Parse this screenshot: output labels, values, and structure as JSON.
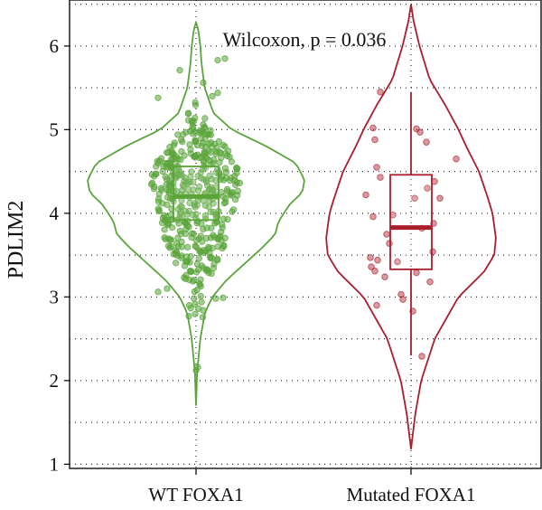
{
  "chart_data": {
    "type": "violin",
    "title": "",
    "xlabel": "",
    "ylabel": "PDLIM2",
    "ylim": [
      0.95,
      6.55
    ],
    "yticks": [
      1,
      2,
      3,
      4,
      5,
      6
    ],
    "categories": [
      "WT FOXA1",
      "Mutated FOXA1"
    ],
    "annotation": "Wilcoxon, p = 0.036",
    "grid": "dotted",
    "legend": "none",
    "series": [
      {
        "category": "WT FOXA1",
        "color": "#5aa43a",
        "box": {
          "q1": 3.92,
          "median": 4.2,
          "q3": 4.56
        },
        "violin": {
          "min": 1.7,
          "max": 6.28,
          "max_halfwidth": 0.23,
          "density_shape": [
            [
              1.7,
              0.0
            ],
            [
              2.1,
              0.01
            ],
            [
              2.5,
              0.04
            ],
            [
              2.8,
              0.08
            ],
            [
              3.0,
              0.15
            ],
            [
              3.2,
              0.28
            ],
            [
              3.4,
              0.45
            ],
            [
              3.6,
              0.62
            ],
            [
              3.75,
              0.73
            ],
            [
              3.9,
              0.76
            ],
            [
              4.1,
              0.86
            ],
            [
              4.25,
              0.98
            ],
            [
              4.4,
              1.0
            ],
            [
              4.6,
              0.92
            ],
            [
              4.8,
              0.65
            ],
            [
              5.0,
              0.33
            ],
            [
              5.2,
              0.16
            ],
            [
              5.5,
              0.08
            ],
            [
              5.8,
              0.05
            ],
            [
              6.0,
              0.04
            ],
            [
              6.2,
              0.02
            ],
            [
              6.28,
              0.0
            ]
          ]
        },
        "outlier_points": [
          2.12,
          2.16,
          2.77,
          2.84,
          5.71,
          5.83,
          5.85,
          5.56,
          5.44,
          5.4,
          5.38,
          5.08,
          3.06,
          3.1,
          2.98,
          2.99
        ]
      },
      {
        "category": "Mutated FOXA1",
        "color": "#a91e2d",
        "box": {
          "q1": 3.33,
          "median": 3.83,
          "q3": 4.46
        },
        "whisker": {
          "low": 2.3,
          "high": 5.45
        },
        "violin": {
          "min": 1.18,
          "max": 6.5,
          "max_halfwidth": 0.18,
          "density_shape": [
            [
              1.18,
              0.0
            ],
            [
              1.6,
              0.05
            ],
            [
              2.0,
              0.12
            ],
            [
              2.5,
              0.28
            ],
            [
              3.0,
              0.56
            ],
            [
              3.3,
              0.86
            ],
            [
              3.5,
              0.98
            ],
            [
              3.7,
              1.0
            ],
            [
              4.0,
              0.96
            ],
            [
              4.2,
              0.9
            ],
            [
              4.5,
              0.8
            ],
            [
              4.8,
              0.65
            ],
            [
              5.0,
              0.56
            ],
            [
              5.3,
              0.4
            ],
            [
              5.6,
              0.22
            ],
            [
              6.0,
              0.1
            ],
            [
              6.3,
              0.03
            ],
            [
              6.5,
              0.0
            ]
          ]
        },
        "points": [
          5.45,
          5.02,
          5.01,
          4.97,
          4.88,
          4.85,
          4.65,
          4.55,
          4.43,
          4.38,
          4.3,
          4.22,
          4.18,
          4.18,
          3.98,
          3.96,
          3.88,
          3.82,
          3.75,
          3.64,
          3.54,
          3.47,
          3.44,
          3.42,
          3.36,
          3.31,
          3.29,
          3.24,
          3.18,
          3.03,
          2.97,
          2.9,
          2.83,
          2.29
        ]
      }
    ]
  }
}
